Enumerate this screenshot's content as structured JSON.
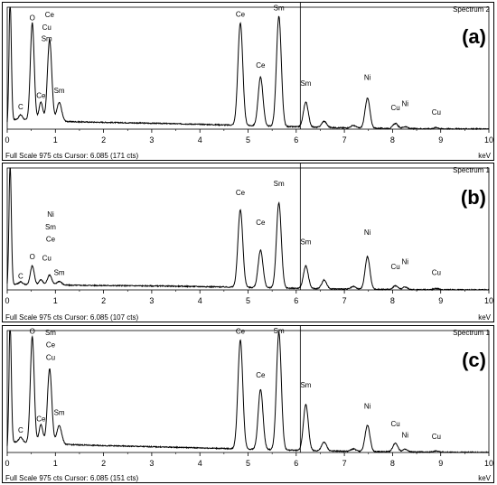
{
  "panels": [
    {
      "spectrum_label": "Spectrum 2",
      "panel_label": "(a)",
      "footer": "Full Scale 975 cts Cursor: 6.085  (171 cts)",
      "unit_label": "keV",
      "chart_data": {
        "type": "line",
        "xlim": [
          0,
          10
        ],
        "ylim": [
          0,
          975
        ],
        "x_ticks": [
          0,
          1,
          2,
          3,
          4,
          5,
          6,
          7,
          8,
          9,
          10
        ],
        "cursor_kev": 6.085,
        "baseline": {
          "start": 70,
          "slope": 12
        },
        "peaks": [
          {
            "e": 0.06,
            "h": 950,
            "w": 0.025
          },
          {
            "e": 0.28,
            "h": 40,
            "w": 0.04
          },
          {
            "e": 0.52,
            "h": 780,
            "w": 0.04
          },
          {
            "e": 0.7,
            "h": 150,
            "w": 0.04
          },
          {
            "e": 0.88,
            "h": 650,
            "w": 0.045
          },
          {
            "e": 1.08,
            "h": 150,
            "w": 0.05
          },
          {
            "e": 4.84,
            "h": 820,
            "w": 0.05
          },
          {
            "e": 5.26,
            "h": 390,
            "w": 0.05
          },
          {
            "e": 5.64,
            "h": 880,
            "w": 0.05
          },
          {
            "e": 6.2,
            "h": 200,
            "w": 0.05
          },
          {
            "e": 6.58,
            "h": 50,
            "w": 0.05
          },
          {
            "e": 7.19,
            "h": 20,
            "w": 0.05
          },
          {
            "e": 7.48,
            "h": 240,
            "w": 0.05
          },
          {
            "e": 8.06,
            "h": 40,
            "w": 0.05
          },
          {
            "e": 8.26,
            "h": 15,
            "w": 0.05
          },
          {
            "e": 8.91,
            "h": 10,
            "w": 0.05
          }
        ],
        "annotations": [
          {
            "text": "C",
            "x": 0.28,
            "y": 160
          },
          {
            "text": "O",
            "x": 0.52,
            "y": 870
          },
          {
            "text": "Ce",
            "x": 0.88,
            "y": 895
          },
          {
            "text": "Cu",
            "x": 0.82,
            "y": 795
          },
          {
            "text": "Sm",
            "x": 0.82,
            "y": 705
          },
          {
            "text": "Ce",
            "x": 0.7,
            "y": 250
          },
          {
            "text": "Sm",
            "x": 1.08,
            "y": 290
          },
          {
            "text": "Ce",
            "x": 4.84,
            "y": 900
          },
          {
            "text": "Sm",
            "x": 5.64,
            "y": 950
          },
          {
            "text": "Ce",
            "x": 5.26,
            "y": 490
          },
          {
            "text": "Sm",
            "x": 6.2,
            "y": 345
          },
          {
            "text": "Ni",
            "x": 7.48,
            "y": 395
          },
          {
            "text": "Cu",
            "x": 8.06,
            "y": 150
          },
          {
            "text": "Ni",
            "x": 8.26,
            "y": 185
          },
          {
            "text": "Cu",
            "x": 8.91,
            "y": 115
          }
        ]
      }
    },
    {
      "spectrum_label": "Spectrum 1",
      "panel_label": "(b)",
      "footer": "Full Scale 975 cts Cursor: 6.085  (107 cts)",
      "unit_label": "keV",
      "chart_data": {
        "type": "line",
        "xlim": [
          0,
          10
        ],
        "ylim": [
          0,
          975
        ],
        "x_ticks": [
          0,
          1,
          2,
          3,
          4,
          5,
          6,
          7,
          8,
          9,
          10
        ],
        "cursor_kev": 6.085,
        "baseline": {
          "start": 40,
          "slope": 9
        },
        "peaks": [
          {
            "e": 0.06,
            "h": 950,
            "w": 0.025
          },
          {
            "e": 0.28,
            "h": 20,
            "w": 0.04
          },
          {
            "e": 0.52,
            "h": 150,
            "w": 0.04
          },
          {
            "e": 0.7,
            "h": 40,
            "w": 0.04
          },
          {
            "e": 0.88,
            "h": 80,
            "w": 0.045
          },
          {
            "e": 1.08,
            "h": 30,
            "w": 0.05
          },
          {
            "e": 4.84,
            "h": 620,
            "w": 0.05
          },
          {
            "e": 5.26,
            "h": 300,
            "w": 0.05
          },
          {
            "e": 5.64,
            "h": 680,
            "w": 0.05
          },
          {
            "e": 6.2,
            "h": 180,
            "w": 0.05
          },
          {
            "e": 6.58,
            "h": 70,
            "w": 0.05
          },
          {
            "e": 7.19,
            "h": 20,
            "w": 0.05
          },
          {
            "e": 7.48,
            "h": 260,
            "w": 0.05
          },
          {
            "e": 8.06,
            "h": 30,
            "w": 0.05
          },
          {
            "e": 8.26,
            "h": 20,
            "w": 0.05
          },
          {
            "e": 8.91,
            "h": 10,
            "w": 0.05
          }
        ],
        "annotations": [
          {
            "text": "C",
            "x": 0.28,
            "y": 90
          },
          {
            "text": "O",
            "x": 0.52,
            "y": 245
          },
          {
            "text": "Ni",
            "x": 0.9,
            "y": 585
          },
          {
            "text": "Sm",
            "x": 0.9,
            "y": 485
          },
          {
            "text": "Ce",
            "x": 0.9,
            "y": 385
          },
          {
            "text": "Cu",
            "x": 0.82,
            "y": 235
          },
          {
            "text": "Sm",
            "x": 1.08,
            "y": 120
          },
          {
            "text": "Ce",
            "x": 4.84,
            "y": 760
          },
          {
            "text": "Sm",
            "x": 5.64,
            "y": 830
          },
          {
            "text": "Ce",
            "x": 5.26,
            "y": 520
          },
          {
            "text": "Sm",
            "x": 6.2,
            "y": 365
          },
          {
            "text": "Ni",
            "x": 7.48,
            "y": 440
          },
          {
            "text": "Cu",
            "x": 8.06,
            "y": 165
          },
          {
            "text": "Ni",
            "x": 8.26,
            "y": 205
          },
          {
            "text": "Cu",
            "x": 8.91,
            "y": 120
          }
        ]
      }
    },
    {
      "spectrum_label": "Spectrum 1",
      "panel_label": "(c)",
      "footer": "Full Scale 975 cts Cursor: 6.085  (151 cts)",
      "unit_label": "keV",
      "chart_data": {
        "type": "line",
        "xlim": [
          0,
          10
        ],
        "ylim": [
          0,
          975
        ],
        "x_ticks": [
          0,
          1,
          2,
          3,
          4,
          5,
          6,
          7,
          8,
          9,
          10
        ],
        "cursor_kev": 6.085,
        "baseline": {
          "start": 80,
          "slope": 10
        },
        "peaks": [
          {
            "e": 0.06,
            "h": 950,
            "w": 0.025
          },
          {
            "e": 0.28,
            "h": 40,
            "w": 0.04
          },
          {
            "e": 0.52,
            "h": 850,
            "w": 0.04
          },
          {
            "e": 0.7,
            "h": 150,
            "w": 0.04
          },
          {
            "e": 0.88,
            "h": 600,
            "w": 0.045
          },
          {
            "e": 1.08,
            "h": 150,
            "w": 0.05
          },
          {
            "e": 4.84,
            "h": 870,
            "w": 0.05
          },
          {
            "e": 5.26,
            "h": 480,
            "w": 0.05
          },
          {
            "e": 5.64,
            "h": 940,
            "w": 0.05
          },
          {
            "e": 6.2,
            "h": 370,
            "w": 0.05
          },
          {
            "e": 6.58,
            "h": 70,
            "w": 0.05
          },
          {
            "e": 7.19,
            "h": 20,
            "w": 0.05
          },
          {
            "e": 7.48,
            "h": 210,
            "w": 0.05
          },
          {
            "e": 8.06,
            "h": 70,
            "w": 0.05
          },
          {
            "e": 8.26,
            "h": 20,
            "w": 0.05
          },
          {
            "e": 8.91,
            "h": 10,
            "w": 0.05
          }
        ],
        "annotations": [
          {
            "text": "C",
            "x": 0.28,
            "y": 160
          },
          {
            "text": "O",
            "x": 0.52,
            "y": 950
          },
          {
            "text": "Sm",
            "x": 0.9,
            "y": 940
          },
          {
            "text": "Ce",
            "x": 0.9,
            "y": 840
          },
          {
            "text": "Cu",
            "x": 0.9,
            "y": 740
          },
          {
            "text": "Ce",
            "x": 0.7,
            "y": 250
          },
          {
            "text": "Sm",
            "x": 1.08,
            "y": 300
          },
          {
            "text": "Ce",
            "x": 4.84,
            "y": 950
          },
          {
            "text": "Sm",
            "x": 5.64,
            "y": 955
          },
          {
            "text": "Ce",
            "x": 5.26,
            "y": 600
          },
          {
            "text": "Sm",
            "x": 6.2,
            "y": 520
          },
          {
            "text": "Ni",
            "x": 7.48,
            "y": 350
          },
          {
            "text": "Cu",
            "x": 8.06,
            "y": 210
          },
          {
            "text": "Ni",
            "x": 8.26,
            "y": 120
          },
          {
            "text": "Cu",
            "x": 8.91,
            "y": 110
          }
        ]
      }
    }
  ]
}
